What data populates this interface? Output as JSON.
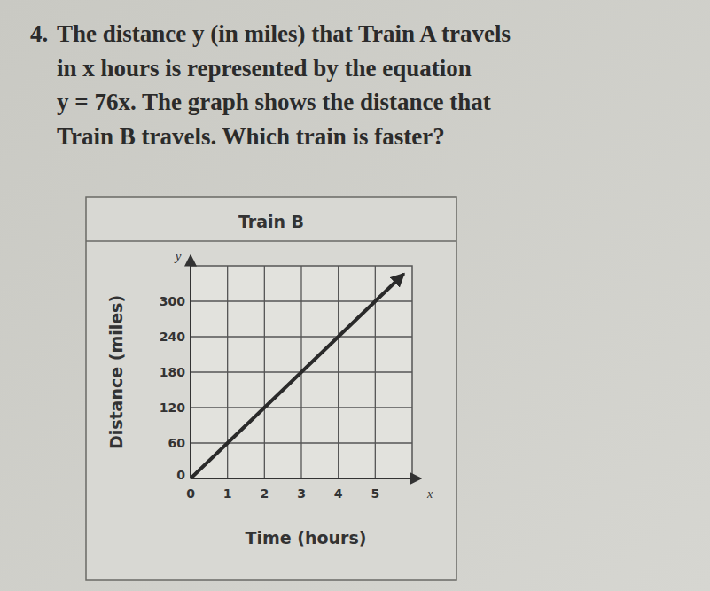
{
  "problem": {
    "number": "4.",
    "lines": [
      "The distance y (in miles) that Train A travels",
      "in x hours is represented by the equation",
      "y = 76x. The graph shows the distance that",
      "Train B travels. Which train is faster?"
    ]
  },
  "chart_data": {
    "type": "line",
    "title": "Train B",
    "x_label": "Time (hours)",
    "y_label": "Distance (miles)",
    "axis_symbols": {
      "x": "x",
      "y": "y"
    },
    "x": [
      0,
      1,
      2,
      3,
      4,
      5,
      5.75
    ],
    "values": [
      0,
      60,
      120,
      180,
      240,
      300,
      345
    ],
    "color": "#2a2a2a",
    "marker": "arrow",
    "xlim": [
      0,
      6
    ],
    "ylim": [
      0,
      360
    ],
    "xticks": [
      0,
      1,
      2,
      3,
      4,
      5
    ],
    "yticks": [
      0,
      60,
      120,
      180,
      240,
      300
    ],
    "grid": true
  }
}
